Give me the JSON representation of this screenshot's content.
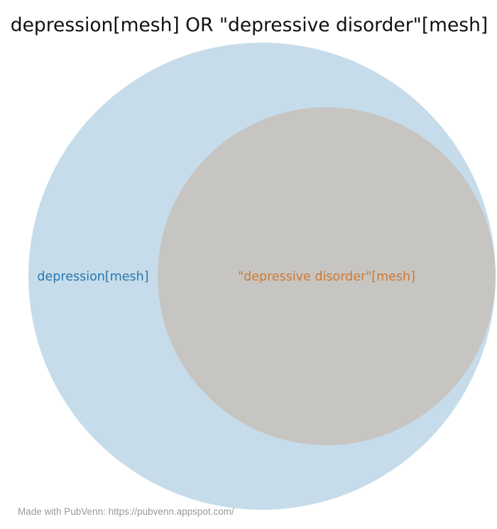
{
  "title": "depression[mesh] OR \"depressive disorder\"[mesh]",
  "sets": [
    {
      "name": "depression[mesh]",
      "fill": "#c6dcea",
      "label_color": "#2a77aa"
    },
    {
      "name": "\"depressive disorder\"[mesh]",
      "fill": "#c6c5c2",
      "label_color": "#cf7a32"
    }
  ],
  "footer": "Made with PubVenn: https://pubvenn.appspot.com/"
}
